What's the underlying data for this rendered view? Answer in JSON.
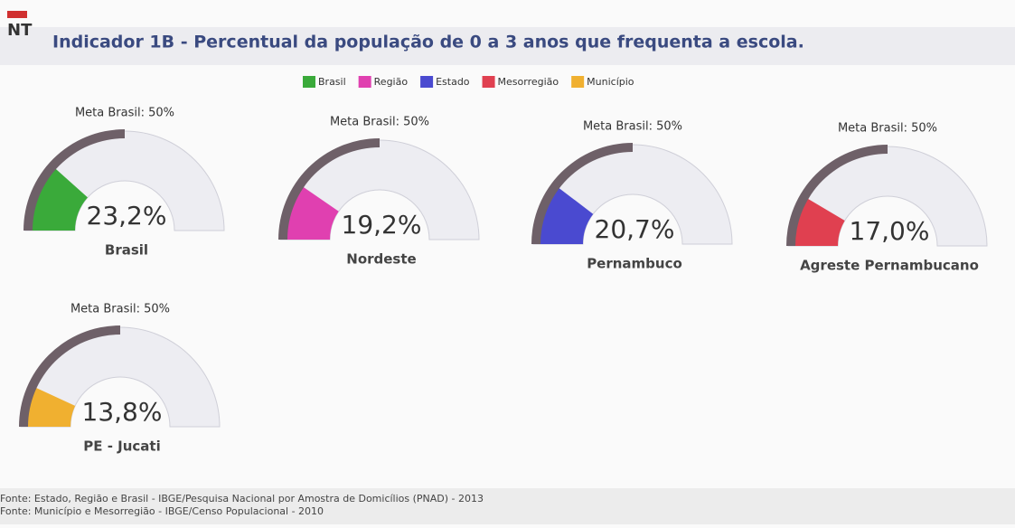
{
  "header": {
    "logo": "NT"
  },
  "chart_data": {
    "type": "gauge",
    "title": "Indicador 1B - Percentual da população de 0 a 3 anos que frequenta a escola.",
    "legend": [
      {
        "name": "Brasil",
        "color": "#3aaa3a"
      },
      {
        "name": "Região",
        "color": "#e040b0"
      },
      {
        "name": "Estado",
        "color": "#4a4ad0"
      },
      {
        "name": "Mesorregião",
        "color": "#e04050"
      },
      {
        "name": "Município",
        "color": "#f0b030"
      }
    ],
    "ylim": [
      0,
      100
    ],
    "target": 50,
    "target_label": "Meta Brasil: 50%",
    "categories": [
      "Brasil",
      "Nordeste",
      "Pernambuco",
      "Agreste Pernambucano",
      "PE - Jucati"
    ],
    "values": [
      23.2,
      19.2,
      20.7,
      17.0,
      13.8
    ],
    "value_labels": [
      "23,2%",
      "19,2%",
      "20,7%",
      "17,0%",
      "13,8%"
    ]
  },
  "footer": {
    "lines": [
      "Fonte: Estado, Região e Brasil - IBGE/Pesquisa Nacional por Amostra de Domicílios (PNAD) - 2013",
      "Fonte: Município e Mesorregião - IBGE/Censo Populacional - 2010"
    ]
  }
}
